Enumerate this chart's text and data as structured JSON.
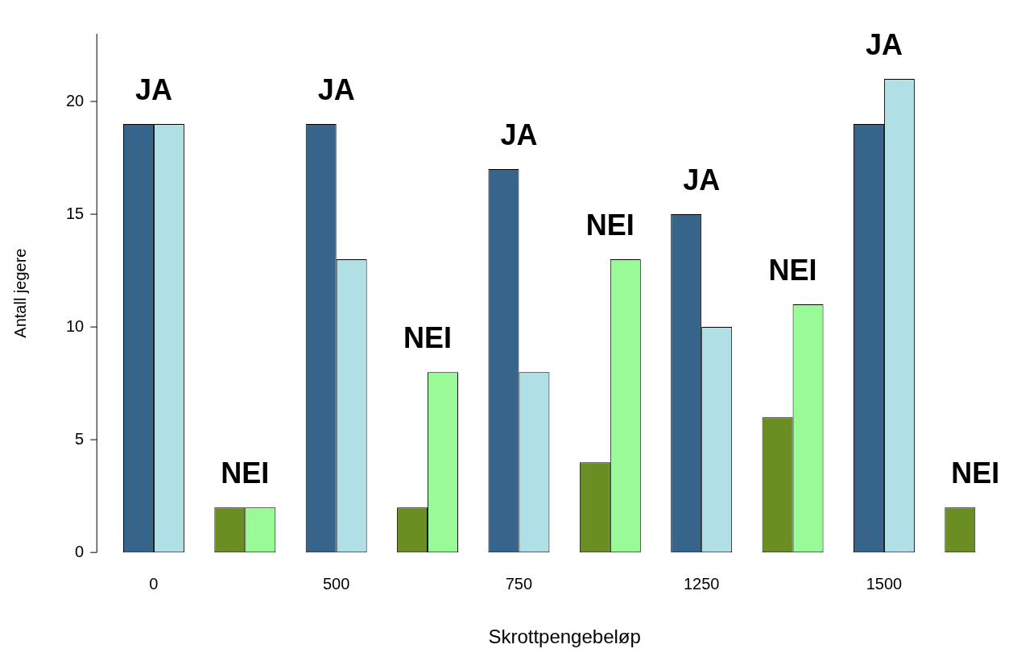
{
  "chart_data": {
    "type": "bar",
    "xlabel": "Skrottpengebeløp",
    "ylabel": "Antall jegere",
    "categories": [
      "0",
      null,
      "500",
      null,
      "750",
      null,
      "1250",
      null,
      "1500",
      null
    ],
    "series": [
      {
        "values": [
          19,
          2,
          19,
          2,
          17,
          4,
          15,
          6,
          19,
          2
        ],
        "colors": [
          "#36648b",
          "#6b8e23",
          "#36648b",
          "#6b8e23",
          "#36648b",
          "#6b8e23",
          "#36648b",
          "#6b8e23",
          "#36648b",
          "#6b8e23"
        ]
      },
      {
        "values": [
          19,
          2,
          13,
          8,
          8,
          13,
          10,
          11,
          21,
          0
        ],
        "colors": [
          "#b0e0e6",
          "#98fb98",
          "#b0e0e6",
          "#98fb98",
          "#b0e0e6",
          "#98fb98",
          "#b0e0e6",
          "#98fb98",
          "#b0e0e6",
          "#98fb98"
        ]
      }
    ],
    "annotations": [
      "JA",
      "NEI",
      "JA",
      "NEI",
      "JA",
      "NEI",
      "JA",
      "NEI",
      "JA",
      "NEI"
    ],
    "ylim": [
      0,
      23
    ],
    "yticks": [
      0,
      5,
      10,
      15,
      20
    ],
    "grid": false,
    "legend": false
  }
}
